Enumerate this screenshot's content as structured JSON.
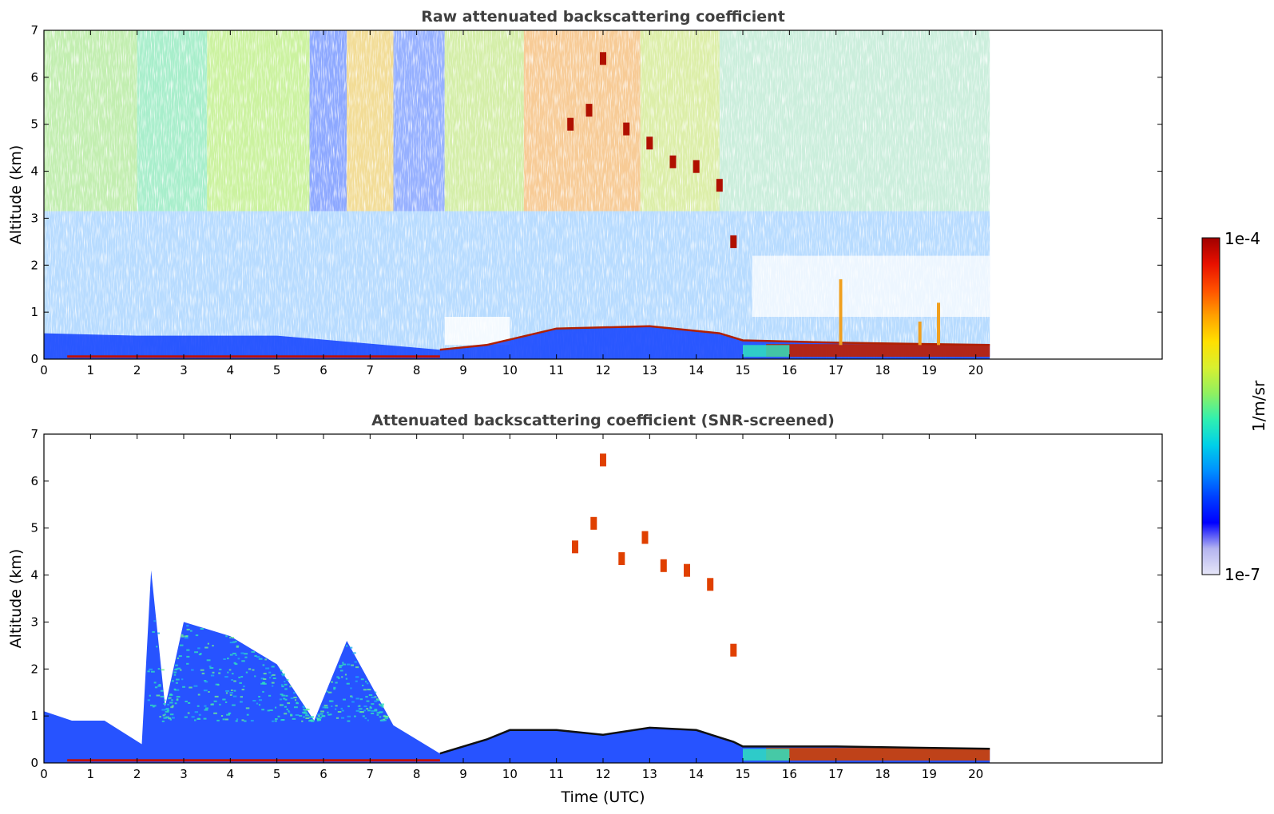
{
  "colors": {
    "colormap": [
      "#e6e6f8",
      "#b4b4f0",
      "#0000ff",
      "#0040ff",
      "#0090ff",
      "#00d0e8",
      "#30f0b0",
      "#90f060",
      "#d8f030",
      "#ffe000",
      "#ffa000",
      "#ff5000",
      "#e81000",
      "#a00000"
    ],
    "title_text": "#404040"
  },
  "chart_data": [
    {
      "type": "heatmap",
      "title": "Raw attenuated backscattering coefficient",
      "xlabel": "",
      "ylabel": "Altitude (km)",
      "xlim": [
        0,
        24
      ],
      "ylim": [
        0,
        7
      ],
      "data_x_extent": [
        0,
        20.3
      ],
      "xticks": [
        0,
        1,
        2,
        3,
        4,
        5,
        6,
        7,
        8,
        9,
        10,
        11,
        12,
        13,
        14,
        15,
        16,
        17,
        18,
        19,
        20
      ],
      "xtick_labels": [
        "0",
        "1",
        "2",
        "3",
        "4",
        "5",
        "6",
        "7",
        "8",
        "9",
        "10",
        "11",
        "12",
        "13",
        "14",
        "15",
        "16",
        "17",
        "18",
        "19",
        "20"
      ],
      "yticks": [
        0,
        1,
        2,
        3,
        4,
        5,
        6,
        7
      ],
      "ytick_labels": [
        "0",
        "1",
        "2",
        "3",
        "4",
        "5",
        "6",
        "7"
      ],
      "boundary_layer_top_km": [
        [
          0,
          0.55
        ],
        [
          2,
          0.5
        ],
        [
          5,
          0.5
        ],
        [
          8.5,
          0.2
        ],
        [
          9.5,
          0.3
        ],
        [
          11,
          0.65
        ],
        [
          13,
          0.7
        ],
        [
          14.5,
          0.55
        ],
        [
          15,
          0.4
        ],
        [
          17,
          0.35
        ],
        [
          20.3,
          0.3
        ]
      ],
      "cloud_track": [
        [
          11.3,
          5.0
        ],
        [
          11.7,
          5.3
        ],
        [
          12.0,
          6.4
        ],
        [
          12.5,
          4.9
        ],
        [
          13.0,
          4.6
        ],
        [
          13.5,
          4.2
        ],
        [
          14.0,
          4.1
        ],
        [
          14.5,
          3.7
        ],
        [
          14.8,
          2.5
        ]
      ],
      "low_clouds": [
        [
          17.1,
          1.7
        ],
        [
          18.8,
          0.8
        ],
        [
          19.2,
          1.2
        ]
      ]
    },
    {
      "type": "heatmap",
      "title": "Attenuated backscattering coefficient (SNR-screened)",
      "xlabel": "Time (UTC)",
      "ylabel": "Altitude (km)",
      "xlim": [
        0,
        24
      ],
      "ylim": [
        0,
        7
      ],
      "data_x_extent": [
        0,
        20.3
      ],
      "xticks": [
        0,
        1,
        2,
        3,
        4,
        5,
        6,
        7,
        8,
        9,
        10,
        11,
        12,
        13,
        14,
        15,
        16,
        17,
        18,
        19,
        20
      ],
      "xtick_labels": [
        "0",
        "1",
        "2",
        "3",
        "4",
        "5",
        "6",
        "7",
        "8",
        "9",
        "10",
        "11",
        "12",
        "13",
        "14",
        "15",
        "16",
        "17",
        "18",
        "19",
        "20"
      ],
      "yticks": [
        0,
        1,
        2,
        3,
        4,
        5,
        6,
        7
      ],
      "ytick_labels": [
        "0",
        "1",
        "2",
        "3",
        "4",
        "5",
        "6",
        "7"
      ],
      "aerosol_layer_top_km": [
        [
          0,
          1.1
        ],
        [
          0.6,
          0.9
        ],
        [
          1.3,
          0.9
        ],
        [
          2.1,
          0.4
        ],
        [
          2.3,
          4.1
        ],
        [
          2.6,
          1.2
        ],
        [
          3.0,
          3.0
        ],
        [
          4.0,
          2.7
        ],
        [
          5.0,
          2.1
        ],
        [
          5.8,
          0.9
        ],
        [
          6.5,
          2.6
        ],
        [
          7.5,
          0.8
        ],
        [
          8.5,
          0.2
        ],
        [
          9.5,
          0.5
        ],
        [
          10,
          0.7
        ],
        [
          11,
          0.7
        ],
        [
          12,
          0.6
        ],
        [
          13,
          0.75
        ],
        [
          14,
          0.7
        ],
        [
          14.8,
          0.45
        ],
        [
          15,
          0.35
        ],
        [
          17,
          0.35
        ],
        [
          20.3,
          0.3
        ]
      ],
      "cloud_track": [
        [
          11.4,
          4.6
        ],
        [
          11.8,
          5.1
        ],
        [
          12.0,
          6.45
        ],
        [
          12.4,
          4.35
        ],
        [
          12.9,
          4.8
        ],
        [
          13.3,
          4.2
        ],
        [
          13.8,
          4.1
        ],
        [
          14.3,
          3.8
        ],
        [
          14.8,
          2.4
        ]
      ]
    }
  ],
  "colorbar": {
    "max_label": "1e-4",
    "min_label": "1e-7",
    "unit_label": "1/m/sr",
    "range": [
      1e-07,
      0.0001
    ],
    "scale": "log"
  }
}
